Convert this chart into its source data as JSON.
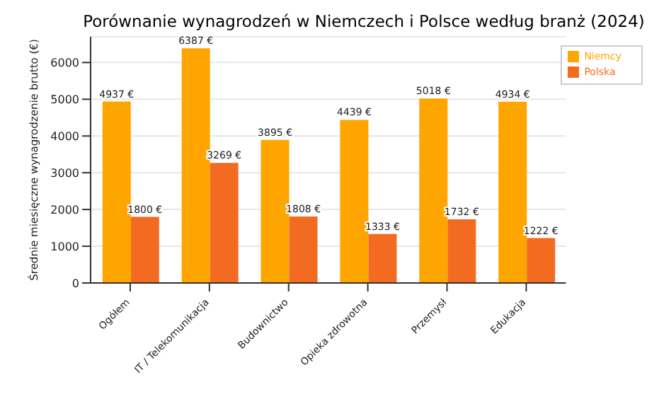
{
  "chart_data": {
    "type": "bar",
    "title": "Porównanie wynagrodzeń w Niemczech i Polsce według branż (2024)",
    "ylabel": "Średnie miesięczne wynagrodzenie brutto (€)",
    "categories": [
      "Ogółem",
      "IT / Telekomunikacja",
      "Budownictwo",
      "Opieka zdrowotna",
      "Przemysł",
      "Edukacja"
    ],
    "series": [
      {
        "name": "Niemcy",
        "color": "#ffa500",
        "values": [
          4937,
          6387,
          3895,
          4439,
          5018,
          4934
        ],
        "value_labels": [
          "4937 €",
          "6387 €",
          "3895 €",
          "4439 €",
          "5018 €",
          "4934 €"
        ]
      },
      {
        "name": "Polska",
        "color": "#f26b21",
        "values": [
          1800,
          3269,
          1808,
          1333,
          1732,
          1222
        ],
        "value_labels": [
          "1800 €",
          "3269 €",
          "1808 €",
          "1333 €",
          "1732 €",
          "1222 €"
        ]
      }
    ],
    "ylim": [
      0,
      6700
    ],
    "yticks": [
      0,
      1000,
      2000,
      3000,
      4000,
      5000,
      6000
    ],
    "grid": "y",
    "legend": "top right"
  }
}
